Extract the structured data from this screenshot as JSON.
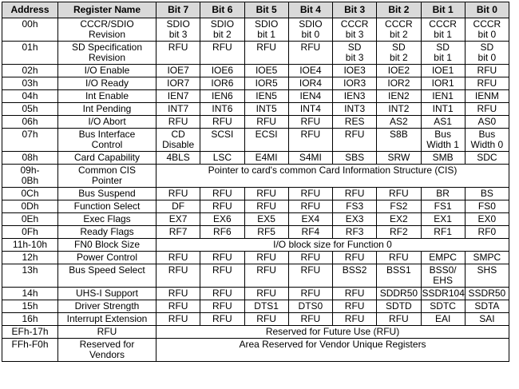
{
  "table": {
    "header": [
      "Address",
      "Register Name",
      "Bit 7",
      "Bit 6",
      "Bit 5",
      "Bit 4",
      "Bit 3",
      "Bit 2",
      "Bit 1",
      "Bit 0"
    ],
    "rows": [
      {
        "address": "00h",
        "name": "CCCR/SDIO\nRevision",
        "bits": [
          "SDIO\nbit 3",
          "SDIO\nbit 2",
          "SDIO\nbit 1",
          "SDIO\nbit 0",
          "CCCR\nbit 3",
          "CCCR\nbit 2",
          "CCCR\nbit 1",
          "CCCR\nbit 0"
        ]
      },
      {
        "address": "01h",
        "name": "SD Specification\nRevision",
        "bits": [
          "RFU",
          "RFU",
          "RFU",
          "RFU",
          "SD\nbit 3",
          "SD\nbit 2",
          "SD\nbit 1",
          "SD\nbit 0"
        ]
      },
      {
        "address": "02h",
        "name": "I/O Enable",
        "bits": [
          "IOE7",
          "IOE6",
          "IOE5",
          "IOE4",
          "IOE3",
          "IOE2",
          "IOE1",
          "RFU"
        ]
      },
      {
        "address": "03h",
        "name": "I/O Ready",
        "bits": [
          "IOR7",
          "IOR6",
          "IOR5",
          "IOR4",
          "IOR3",
          "IOR2",
          "IOR1",
          "RFU"
        ]
      },
      {
        "address": "04h",
        "name": "Int Enable",
        "bits": [
          "IEN7",
          "IEN6",
          "IEN5",
          "IEN4",
          "IEN3",
          "IEN2",
          "IEN1",
          "IENM"
        ]
      },
      {
        "address": "05h",
        "name": "Int Pending",
        "bits": [
          "INT7",
          "INT6",
          "INT5",
          "INT4",
          "INT3",
          "INT2",
          "INT1",
          "RFU"
        ]
      },
      {
        "address": "06h",
        "name": "I/O Abort",
        "bits": [
          "RFU",
          "RFU",
          "RFU",
          "RFU",
          "RES",
          "AS2",
          "AS1",
          "AS0"
        ]
      },
      {
        "address": "07h",
        "name": "Bus Interface\nControl",
        "bits": [
          "CD\nDisable",
          "SCSI",
          "ECSI",
          "RFU",
          "RFU",
          "S8B",
          "Bus\nWidth 1",
          "Bus\nWidth 0"
        ]
      },
      {
        "address": "08h",
        "name": "Card Capability",
        "bits": [
          "4BLS",
          "LSC",
          "E4MI",
          "S4MI",
          "SBS",
          "SRW",
          "SMB",
          "SDC"
        ]
      },
      {
        "address": "09h-\n0Bh",
        "name": "Common CIS\nPointer",
        "span": "Pointer to card's common Card Information Structure (CIS)"
      },
      {
        "address": "0Ch",
        "name": "Bus Suspend",
        "bits": [
          "RFU",
          "RFU",
          "RFU",
          "RFU",
          "RFU",
          "RFU",
          "BR",
          "BS"
        ]
      },
      {
        "address": "0Dh",
        "name": "Function Select",
        "bits": [
          "DF",
          "RFU",
          "RFU",
          "RFU",
          "FS3",
          "FS2",
          "FS1",
          "FS0"
        ]
      },
      {
        "address": "0Eh",
        "name": "Exec Flags",
        "bits": [
          "EX7",
          "EX6",
          "EX5",
          "EX4",
          "EX3",
          "EX2",
          "EX1",
          "EX0"
        ]
      },
      {
        "address": "0Fh",
        "name": "Ready Flags",
        "bits": [
          "RF7",
          "RF6",
          "RF5",
          "RF4",
          "RF3",
          "RF2",
          "RF1",
          "RF0"
        ]
      },
      {
        "address": "11h-10h",
        "name": "FN0 Block Size",
        "span": "I/O block size for Function 0"
      },
      {
        "address": "12h",
        "name": "Power Control",
        "bits": [
          "RFU",
          "RFU",
          "RFU",
          "RFU",
          "RFU",
          "RFU",
          "EMPC",
          "SMPC"
        ]
      },
      {
        "address": "13h",
        "name": "Bus Speed Select",
        "bits": [
          "RFU",
          "RFU",
          "RFU",
          "RFU",
          "BSS2",
          "BSS1",
          "BSS0/\nEHS",
          "SHS"
        ]
      },
      {
        "address": "14h",
        "name": "UHS-I  Support",
        "bits": [
          "RFU",
          "RFU",
          "RFU",
          "RFU",
          "RFU",
          "SDDR50",
          "SSDR104",
          "SSDR50"
        ]
      },
      {
        "address": "15h",
        "name": "Driver Strength",
        "bits": [
          "RFU",
          "RFU",
          "DTS1",
          "DTS0",
          "RFU",
          "SDTD",
          "SDTC",
          "SDTA"
        ]
      },
      {
        "address": "16h",
        "name": "Interrupt Extension",
        "bits": [
          "RFU",
          "RFU",
          "RFU",
          "RFU",
          "RFU",
          "RFU",
          "EAI",
          "SAI"
        ]
      },
      {
        "address": "EFh-17h",
        "name": "RFU",
        "span": "Reserved for Future Use (RFU)"
      },
      {
        "address": "FFh-F0h",
        "name": "Reserved for\nVendors",
        "span": "Area Reserved for Vendor Unique Registers"
      }
    ]
  }
}
